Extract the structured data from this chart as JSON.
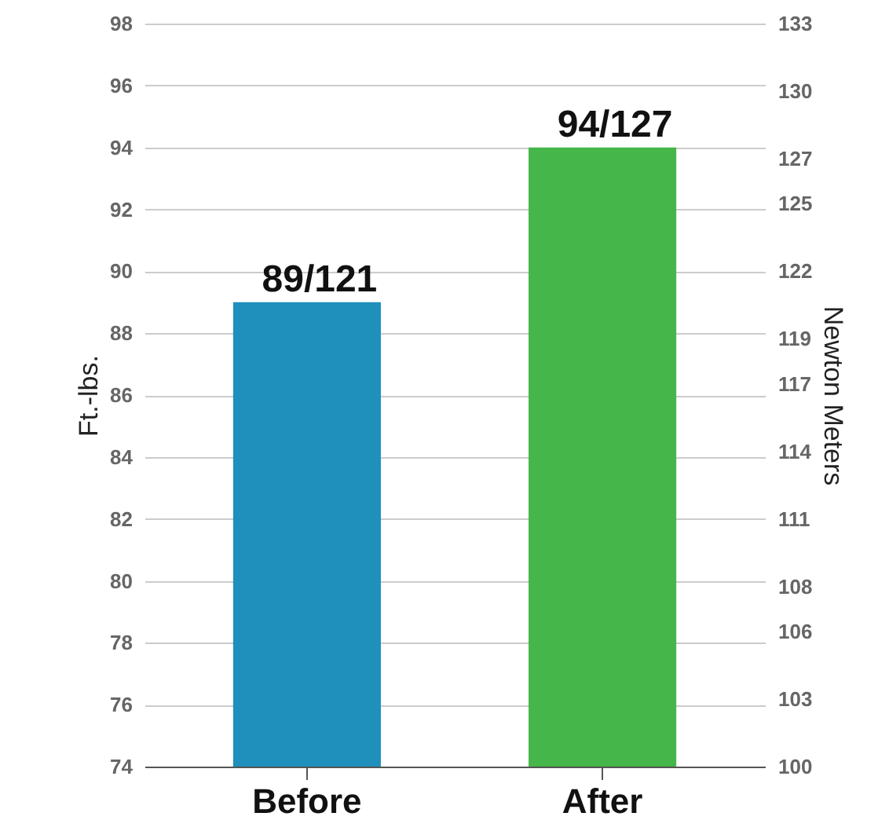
{
  "chart_data": {
    "type": "bar",
    "categories": [
      "Before",
      "After"
    ],
    "values": [
      89,
      94
    ],
    "colors": [
      "#1f8fbb",
      "#45b649"
    ],
    "value_labels": [
      "89/121",
      "94/127"
    ],
    "ylabel": "Ft.-lbs.",
    "y2label": "Newton Meters",
    "ylim": [
      74,
      98
    ],
    "yticks": [
      74,
      76,
      78,
      80,
      82,
      84,
      86,
      88,
      90,
      92,
      94,
      96,
      98
    ],
    "y2lim": [
      100,
      133
    ],
    "y2ticks": [
      100,
      103,
      106,
      108,
      111,
      114,
      117,
      119,
      122,
      125,
      127,
      130,
      133
    ],
    "grid": "y"
  }
}
